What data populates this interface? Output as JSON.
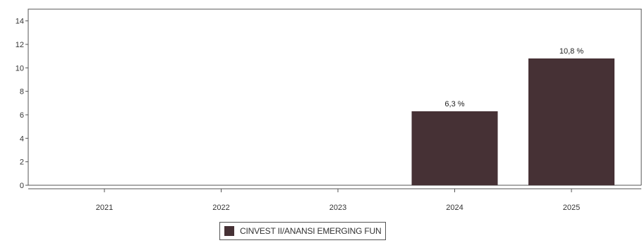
{
  "chart_data": {
    "type": "bar",
    "categories": [
      "2021",
      "2022",
      "2023",
      "2024",
      "2025"
    ],
    "series": [
      {
        "name": "CINVEST II/ANANSI EMERGING FUN",
        "values": [
          null,
          null,
          null,
          6.3,
          10.8
        ],
        "labels": [
          "",
          "",
          "",
          "6,3 %",
          "10,8 %"
        ],
        "color": "#463135"
      }
    ],
    "yticks": [
      "0",
      "2",
      "4",
      "6",
      "8",
      "10",
      "12",
      "14"
    ],
    "ylim": [
      0,
      15
    ],
    "grid": false,
    "legend_position": "bottom"
  }
}
